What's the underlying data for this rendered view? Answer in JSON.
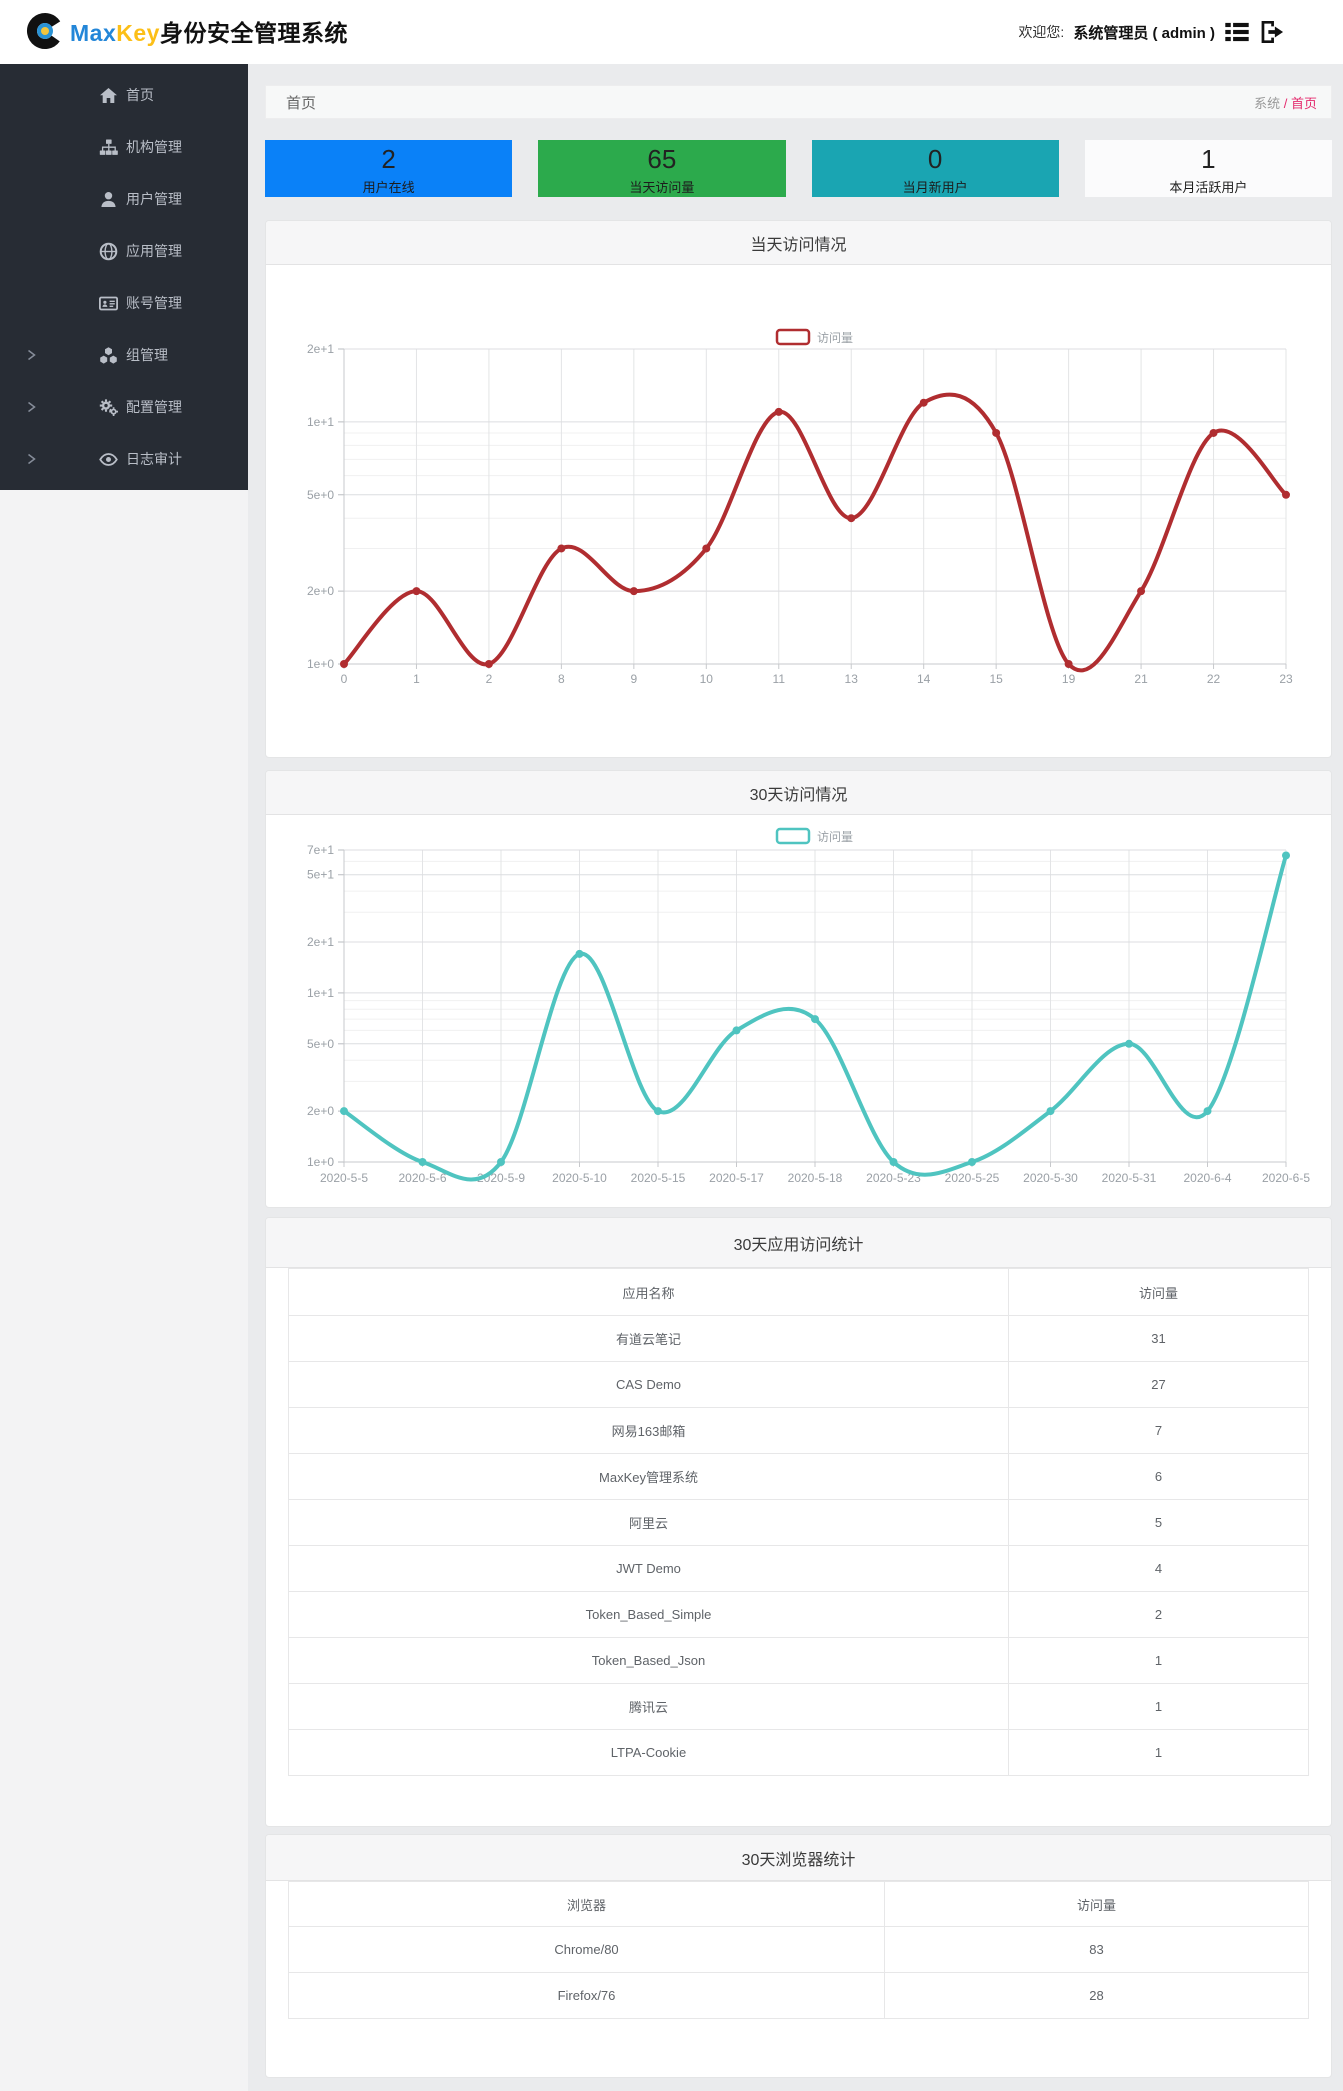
{
  "topbar": {
    "logo_max": "Max",
    "logo_key": "Key",
    "logo_suffix": "身份安全管理系统",
    "welcome_label": "欢迎您:",
    "admin_label": "系统管理员 ( admin )"
  },
  "pagebar": {
    "title": "首页",
    "breadcrumb_root": "系统",
    "breadcrumb_sep": " / ",
    "breadcrumb_current": "首页"
  },
  "sidebar": {
    "items": [
      {
        "label": "首页",
        "icon": "home-icon",
        "expandable": false
      },
      {
        "label": "机构管理",
        "icon": "sitemap-icon",
        "expandable": false
      },
      {
        "label": "用户管理",
        "icon": "user-icon",
        "expandable": false
      },
      {
        "label": "应用管理",
        "icon": "globe-icon",
        "expandable": false
      },
      {
        "label": "账号管理",
        "icon": "id-card-icon",
        "expandable": false
      },
      {
        "label": "组管理",
        "icon": "cubes-icon",
        "expandable": true
      },
      {
        "label": "配置管理",
        "icon": "gears-icon",
        "expandable": true
      },
      {
        "label": "日志审计",
        "icon": "eye-icon",
        "expandable": true
      }
    ]
  },
  "stat_cards": [
    {
      "value": "2",
      "label": "用户在线",
      "bg": "#0a81f8"
    },
    {
      "value": "65",
      "label": "当天访问量",
      "bg": "#2caa4c"
    },
    {
      "value": "0",
      "label": "当月新用户",
      "bg": "#1aa5b2"
    },
    {
      "value": "1",
      "label": "本月活跃用户",
      "bg": "#fbfbfc"
    }
  ],
  "chart_data": [
    {
      "type": "line",
      "title": "当天访问情况",
      "legend": "访问量",
      "color": "#b02d30",
      "yscale": "log",
      "ylim": [
        1,
        20
      ],
      "categories": [
        "0",
        "1",
        "2",
        "8",
        "9",
        "10",
        "11",
        "13",
        "14",
        "15",
        "19",
        "21",
        "22",
        "23"
      ],
      "values": [
        1,
        2,
        1,
        3,
        2,
        3,
        11,
        4,
        12,
        9,
        1,
        2,
        9,
        5
      ],
      "y_ticks": [
        {
          "v": 20,
          "label": "2e+1"
        },
        {
          "v": 10,
          "label": "1e+1"
        },
        {
          "v": 5,
          "label": "5e+0"
        },
        {
          "v": 2,
          "label": "2e+0"
        },
        {
          "v": 1,
          "label": "1e+0"
        }
      ],
      "minor_gridlines": [
        2,
        3,
        4,
        6,
        7,
        8,
        9
      ],
      "grid": true,
      "legend_position": "top-center"
    },
    {
      "type": "line",
      "title": "30天访问情况",
      "legend": "访问量",
      "color": "#4fc4c0",
      "yscale": "log",
      "ylim": [
        1,
        70
      ],
      "categories": [
        "2020-5-5",
        "2020-5-6",
        "2020-5-9",
        "2020-5-10",
        "2020-5-15",
        "2020-5-17",
        "2020-5-18",
        "2020-5-23",
        "2020-5-25",
        "2020-5-30",
        "2020-5-31",
        "2020-6-4",
        "2020-6-5"
      ],
      "values": [
        2,
        1,
        1,
        17,
        2,
        6,
        7,
        1,
        1,
        2,
        5,
        2,
        65
      ],
      "y_ticks": [
        {
          "v": 70,
          "label": "7e+1"
        },
        {
          "v": 50,
          "label": "5e+1"
        },
        {
          "v": 20,
          "label": "2e+1"
        },
        {
          "v": 10,
          "label": "1e+1"
        },
        {
          "v": 5,
          "label": "5e+0"
        },
        {
          "v": 2,
          "label": "2e+0"
        },
        {
          "v": 1,
          "label": "1e+0"
        }
      ],
      "minor_gridlines": [
        2,
        3,
        4,
        6,
        7,
        8,
        9,
        30,
        40,
        60
      ],
      "grid": true,
      "legend_position": "top-center"
    },
    {
      "type": "table",
      "title": "30天应用访问统计",
      "headers": [
        "应用名称",
        "访问量"
      ],
      "rows": [
        [
          "有道云笔记",
          "31"
        ],
        [
          "CAS Demo",
          "27"
        ],
        [
          "网易163邮箱",
          "7"
        ],
        [
          "MaxKey管理系统",
          "6"
        ],
        [
          "阿里云",
          "5"
        ],
        [
          "JWT Demo",
          "4"
        ],
        [
          "Token_Based_Simple",
          "2"
        ],
        [
          "Token_Based_Json",
          "1"
        ],
        [
          "腾讯云",
          "1"
        ],
        [
          "LTPA-Cookie",
          "1"
        ]
      ]
    },
    {
      "type": "table",
      "title": "30天浏览器统计",
      "headers": [
        "浏览器",
        "访问量"
      ],
      "rows": [
        [
          "Chrome/80",
          "83"
        ],
        [
          "Firefox/76",
          "28"
        ]
      ]
    }
  ]
}
